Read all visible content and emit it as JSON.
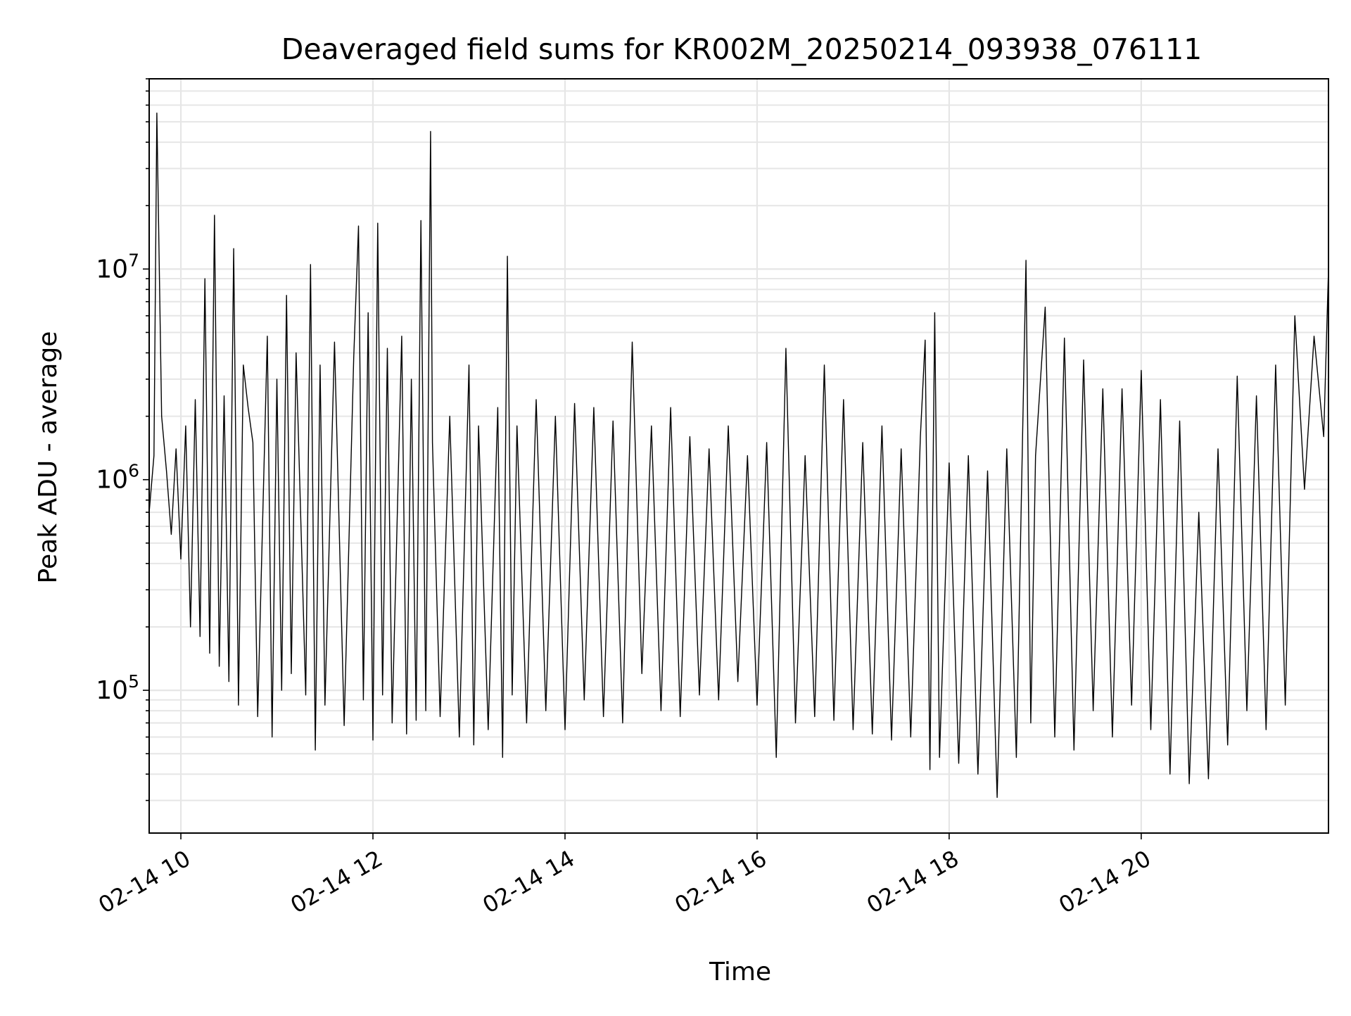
{
  "chart_data": {
    "type": "line",
    "title": "Deaveraged field sums for KR002M_20250214_093938_076111",
    "xlabel": "Time",
    "ylabel": "Peak ADU - average",
    "yscale": "log",
    "ylim": [
      21000,
      80000000
    ],
    "xlim_hours": [
      9.67,
      21.95
    ],
    "x_ticks": [
      {
        "hour": 10,
        "label": "02-14 10"
      },
      {
        "hour": 12,
        "label": "02-14 12"
      },
      {
        "hour": 14,
        "label": "02-14 14"
      },
      {
        "hour": 16,
        "label": "02-14 16"
      },
      {
        "hour": 18,
        "label": "02-14 18"
      },
      {
        "hour": 20,
        "label": "02-14 20"
      }
    ],
    "y_ticks": [
      {
        "value": 100000,
        "base": "10",
        "exp": "5"
      },
      {
        "value": 1000000,
        "base": "10",
        "exp": "6"
      },
      {
        "value": 10000000,
        "base": "10",
        "exp": "7"
      }
    ],
    "grid": true,
    "line_color": "#000000",
    "grid_color": "#e6e6e6",
    "series": [
      {
        "x_hours": [
          9.67,
          9.72,
          9.75,
          9.8,
          9.85,
          9.9,
          9.95,
          10.0,
          10.05,
          10.1,
          10.15,
          10.2,
          10.25,
          10.3,
          10.35,
          10.4,
          10.45,
          10.5,
          10.55,
          10.6,
          10.65,
          10.7,
          10.75,
          10.8,
          10.9,
          10.95,
          11.0,
          11.05,
          11.1,
          11.15,
          11.2,
          11.3,
          11.35,
          11.4,
          11.45,
          11.5,
          11.6,
          11.7,
          11.8,
          11.85,
          11.9,
          11.95,
          12.0,
          12.05,
          12.1,
          12.15,
          12.2,
          12.3,
          12.35,
          12.4,
          12.45,
          12.5,
          12.55,
          12.6,
          12.62,
          12.7,
          12.8,
          12.9,
          13.0,
          13.05,
          13.1,
          13.2,
          13.3,
          13.35,
          13.4,
          13.45,
          13.5,
          13.6,
          13.7,
          13.8,
          13.9,
          14.0,
          14.1,
          14.2,
          14.3,
          14.4,
          14.5,
          14.6,
          14.7,
          14.8,
          14.9,
          15.0,
          15.1,
          15.2,
          15.3,
          15.4,
          15.5,
          15.6,
          15.7,
          15.8,
          15.9,
          16.0,
          16.1,
          16.2,
          16.3,
          16.4,
          16.5,
          16.6,
          16.7,
          16.8,
          16.9,
          17.0,
          17.1,
          17.2,
          17.3,
          17.4,
          17.5,
          17.6,
          17.7,
          17.75,
          17.8,
          17.85,
          17.9,
          18.0,
          18.1,
          18.2,
          18.3,
          18.4,
          18.5,
          18.6,
          18.7,
          18.8,
          18.85,
          18.9,
          19.0,
          19.1,
          19.2,
          19.3,
          19.4,
          19.5,
          19.6,
          19.7,
          19.8,
          19.9,
          20.0,
          20.1,
          20.2,
          20.3,
          20.4,
          20.5,
          20.6,
          20.7,
          20.8,
          20.9,
          21.0,
          21.1,
          21.2,
          21.3,
          21.4,
          21.5,
          21.6,
          21.7,
          21.8,
          21.9,
          21.95
        ],
        "y": [
          700000,
          1300000,
          55000000,
          2000000,
          1100000,
          550000,
          1400000,
          420000,
          1800000,
          200000,
          2400000,
          180000,
          9000000,
          150000,
          18000000,
          130000,
          2500000,
          110000,
          12500000,
          85000,
          3500000,
          2200000,
          1500000,
          75000,
          4800000,
          60000,
          3000000,
          100000,
          7500000,
          120000,
          4000000,
          95000,
          10500000,
          52000,
          3500000,
          85000,
          4500000,
          68000,
          3800000,
          16000000,
          90000,
          6200000,
          58000,
          16500000,
          95000,
          4200000,
          70000,
          4800000,
          62000,
          3000000,
          72000,
          17000000,
          80000,
          45000000,
          1500000,
          75000,
          2000000,
          60000,
          3500000,
          55000,
          1800000,
          65000,
          2200000,
          48000,
          11500000,
          95000,
          1800000,
          70000,
          2400000,
          80000,
          2000000,
          65000,
          2300000,
          90000,
          2200000,
          75000,
          1900000,
          70000,
          4500000,
          120000,
          1800000,
          80000,
          2200000,
          75000,
          1600000,
          95000,
          1400000,
          90000,
          1800000,
          110000,
          1300000,
          85000,
          1500000,
          48000,
          4200000,
          70000,
          1300000,
          75000,
          3500000,
          72000,
          2400000,
          65000,
          1500000,
          62000,
          1800000,
          58000,
          1400000,
          60000,
          1600000,
          4600000,
          42000,
          6200000,
          48000,
          1200000,
          45000,
          1300000,
          40000,
          1100000,
          31000,
          1400000,
          48000,
          11000000,
          70000,
          1300000,
          6600000,
          60000,
          4700000,
          52000,
          3700000,
          80000,
          2700000,
          60000,
          2700000,
          85000,
          3300000,
          65000,
          2400000,
          40000,
          1900000,
          36000,
          700000,
          38000,
          1400000,
          55000,
          3100000,
          80000,
          2500000,
          65000,
          3500000,
          85000,
          6000000,
          900000,
          4800000,
          1600000,
          10000000
        ]
      }
    ]
  }
}
